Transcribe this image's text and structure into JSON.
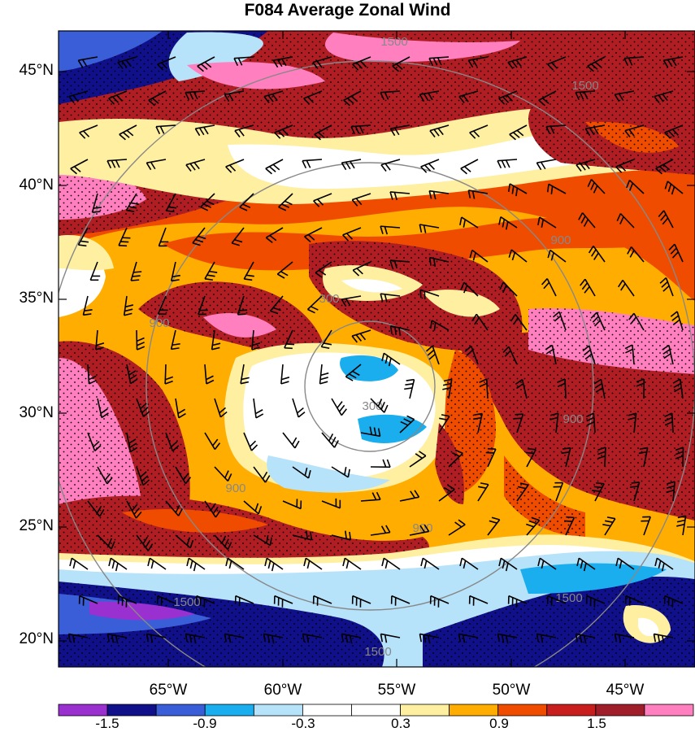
{
  "title": "F084 Average Zonal Wind",
  "map": {
    "lat_labels": [
      "45°N",
      "40°N",
      "35°N",
      "30°N",
      "25°N",
      "20°N"
    ],
    "lon_labels": [
      "65°W",
      "60°W",
      "55°W",
      "50°W",
      "45°W"
    ],
    "range_rings": [
      {
        "label": "300"
      },
      {
        "label": "900"
      },
      {
        "label": "1500"
      }
    ]
  },
  "colorbar": {
    "tick_labels": [
      "-1.5",
      "-0.9",
      "-0.3",
      "0.3",
      "0.9",
      "1.5"
    ],
    "colors": [
      "#9b30d0",
      "#10108a",
      "#3a5ed8",
      "#1aaeee",
      "#b6e2fa",
      "#ffffff",
      "#ffffff",
      "#ffefa0",
      "#ffad00",
      "#f04c00",
      "#c81e1e",
      "#a01e2a",
      "#ff7fbf"
    ]
  },
  "palette": {
    "purple": "#9b30d0",
    "navy": "#10108a",
    "blue": "#3a5ed8",
    "cyan": "#1aaeee",
    "lightblue": "#b6e2fa",
    "white": "#ffffff",
    "yellow": "#ffefa0",
    "orange": "#ffad00",
    "redorange": "#f04c00",
    "darkred": "#b01e24",
    "pink": "#ff7fbf",
    "ring": "#888888"
  }
}
